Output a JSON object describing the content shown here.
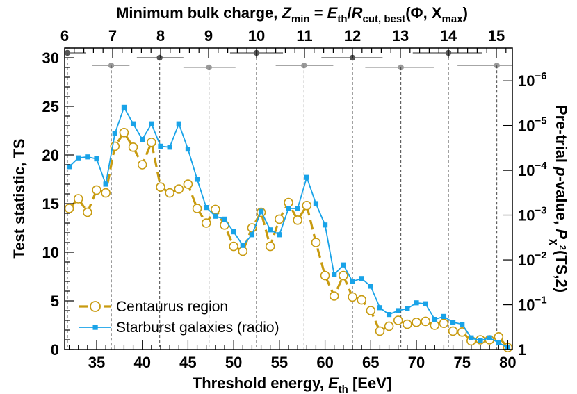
{
  "chart_data": {
    "type": "line",
    "xlabel": {
      "prefix": "Threshold energy,  ",
      "var": "E",
      "sub": "th",
      "suffix": "  [EeV]"
    },
    "ylabel": "Test statistic, TS",
    "y2label": {
      "prefix": "Pre-trial  ",
      "var": "p",
      "mid": "-value,  ",
      "var2": "P",
      "sub": "χ",
      "sup": "2",
      "suffix": "(TS,2)"
    },
    "toplabel": {
      "prefix": "Minimum bulk charge,  ",
      "var": "Z",
      "sub1": "min",
      "mid1": " = ",
      "var2": "E",
      "sub2": "th",
      "mid2": "/",
      "var3": "R",
      "sub3": "cut, best",
      "suffix": "(Φ, X",
      "sub4": "max",
      "end": ")"
    },
    "xlim": [
      31.5,
      80.5
    ],
    "ylim": [
      0,
      31
    ],
    "xticks": [
      35,
      40,
      45,
      50,
      55,
      60,
      65,
      70,
      75,
      80
    ],
    "yticks": [
      0,
      5,
      10,
      15,
      20,
      25,
      30
    ],
    "toptick_values": [
      6,
      7,
      8,
      9,
      10,
      11,
      12,
      13,
      14,
      15
    ],
    "toptick_energies": [
      31.5,
      36.75,
      42.0,
      47.25,
      52.5,
      57.75,
      63.0,
      68.25,
      73.5,
      78.75
    ],
    "pvalue_ticks": [
      {
        "label": "1",
        "ts": 0.0
      },
      {
        "label": "10",
        "exp": "−1",
        "ts": 4.6
      },
      {
        "label": "10",
        "exp": "−2",
        "ts": 9.21
      },
      {
        "label": "10",
        "exp": "−3",
        "ts": 13.82
      },
      {
        "label": "10",
        "exp": "−4",
        "ts": 18.42
      },
      {
        "label": "10",
        "exp": "−5",
        "ts": 23.03
      },
      {
        "label": "10",
        "exp": "−6",
        "ts": 27.63
      }
    ],
    "series": [
      {
        "name": "Centaurus region",
        "color": "#c89b10",
        "marker": "open-circle",
        "x": [
          32,
          33,
          34,
          35,
          36,
          37,
          38,
          39,
          40,
          41,
          42,
          43,
          44,
          45,
          46,
          47,
          48,
          49,
          50,
          51,
          52,
          53,
          54,
          55,
          56,
          57,
          58,
          59,
          60,
          61,
          62,
          63,
          64,
          65,
          66,
          67,
          68,
          69,
          70,
          71,
          72,
          73,
          74,
          75,
          76,
          77,
          78,
          79,
          80
        ],
        "values": [
          14.5,
          15.5,
          14.1,
          16.4,
          16.1,
          20.9,
          22.3,
          20.8,
          19.0,
          21.3,
          16.7,
          16.1,
          16.5,
          17.0,
          14.5,
          13.0,
          14.4,
          12.8,
          10.6,
          10.1,
          12.5,
          14.1,
          10.6,
          13.4,
          15.1,
          13.3,
          14.8,
          11.0,
          7.6,
          5.5,
          7.6,
          5.4,
          5.1,
          4.0,
          1.9,
          2.4,
          3.0,
          2.6,
          2.8,
          2.9,
          2.5,
          2.7,
          1.9,
          1.8,
          0.9,
          1.0,
          1.0,
          1.3,
          0.2
        ]
      },
      {
        "name": "Starburst galaxies (radio)",
        "color": "#19a3e8",
        "marker": "filled-square",
        "x": [
          32,
          33,
          34,
          35,
          36,
          37,
          38,
          39,
          40,
          41,
          42,
          43,
          44,
          45,
          46,
          47,
          48,
          49,
          50,
          51,
          52,
          53,
          54,
          55,
          56,
          57,
          58,
          59,
          60,
          61,
          62,
          63,
          64,
          65,
          66,
          67,
          68,
          69,
          70,
          71,
          72,
          73,
          74,
          75,
          76,
          77,
          78,
          79,
          80
        ],
        "values": [
          18.8,
          19.7,
          19.8,
          19.6,
          17.0,
          22.2,
          24.9,
          23.2,
          21.6,
          23.2,
          20.9,
          20.8,
          23.2,
          20.6,
          17.5,
          14.6,
          13.7,
          13.4,
          12.1,
          10.7,
          11.8,
          14.2,
          12.3,
          11.8,
          14.5,
          14.5,
          17.7,
          15.0,
          12.8,
          7.7,
          8.7,
          7.0,
          7.3,
          6.5,
          4.3,
          3.6,
          4.0,
          4.2,
          4.8,
          4.7,
          3.1,
          3.4,
          2.8,
          2.6,
          1.2,
          0.9,
          1.2,
          0.7,
          0.2
        ]
      }
    ],
    "top_points": [
      {
        "z": 6,
        "energy": 31.8,
        "ts": 30.5,
        "lo": 31.5,
        "hi": 33.8,
        "shade": "dark"
      },
      {
        "z": 7,
        "energy": 36.6,
        "ts": 29.2,
        "lo": 34.5,
        "hi": 38.6,
        "shade": "light"
      },
      {
        "z": 8,
        "energy": 41.9,
        "ts": 30.0,
        "lo": 39.4,
        "hi": 44.5,
        "shade": "dark"
      },
      {
        "z": 9,
        "energy": 47.3,
        "ts": 29.0,
        "lo": 44.5,
        "hi": 50.2,
        "shade": "light"
      },
      {
        "z": 10,
        "energy": 52.5,
        "ts": 30.5,
        "lo": 49.6,
        "hi": 55.4,
        "shade": "dark"
      },
      {
        "z": 11,
        "energy": 57.7,
        "ts": 29.2,
        "lo": 54.6,
        "hi": 60.9,
        "shade": "light"
      },
      {
        "z": 12,
        "energy": 63.0,
        "ts": 30.0,
        "lo": 59.6,
        "hi": 66.3,
        "shade": "dark"
      },
      {
        "z": 13,
        "energy": 68.3,
        "ts": 29.0,
        "lo": 64.4,
        "hi": 71.9,
        "shade": "light"
      },
      {
        "z": 14,
        "energy": 73.5,
        "ts": 30.5,
        "lo": 69.6,
        "hi": 77.2,
        "shade": "dark"
      },
      {
        "z": 15,
        "energy": 78.8,
        "ts": 29.2,
        "lo": 74.5,
        "hi": 80.5,
        "shade": "light"
      }
    ],
    "colors": {
      "dark_point": "#555555",
      "light_point": "#999999",
      "guide": "#444444"
    },
    "legend": "bottom-left",
    "grid": false
  }
}
